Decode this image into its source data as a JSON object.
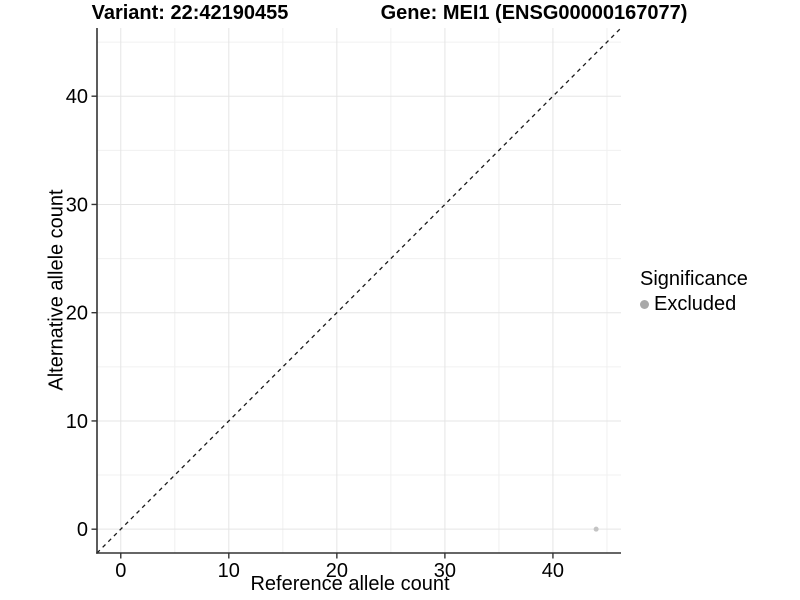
{
  "chart_data": {
    "type": "scatter",
    "title_left": "Variant: 22:42190455",
    "title_right": "Gene: MEI1 (ENSG00000167077)",
    "xlabel": "Reference allele count",
    "ylabel": "Alternative allele count",
    "xlim": [
      -2.2,
      46.3
    ],
    "ylim": [
      -2.2,
      46.3
    ],
    "xticks": [
      0,
      10,
      20,
      30,
      40
    ],
    "yticks": [
      0,
      10,
      20,
      30,
      40
    ],
    "minor_gridlines": [
      5,
      15,
      25,
      35,
      45
    ],
    "grid": true,
    "identity_line": {
      "slope": 1,
      "intercept": 0,
      "linetype": "dashed"
    },
    "series": [
      {
        "name": "Excluded",
        "color": "#c4c4c4",
        "point_radius": 2.5,
        "points": [
          [
            44,
            0
          ]
        ]
      }
    ],
    "legend": {
      "title": "Significance",
      "position": "right",
      "items": [
        {
          "label": "Excluded",
          "color": "#a9a9a9"
        }
      ]
    },
    "style": {
      "axis_color": "#333333",
      "tick_color": "#333333",
      "grid_major": "#e5e5e5",
      "grid_minor": "#f0f0f0",
      "text_color": "#000000",
      "identity_line_color": "#1a1a1a",
      "background": "#ffffff"
    }
  }
}
